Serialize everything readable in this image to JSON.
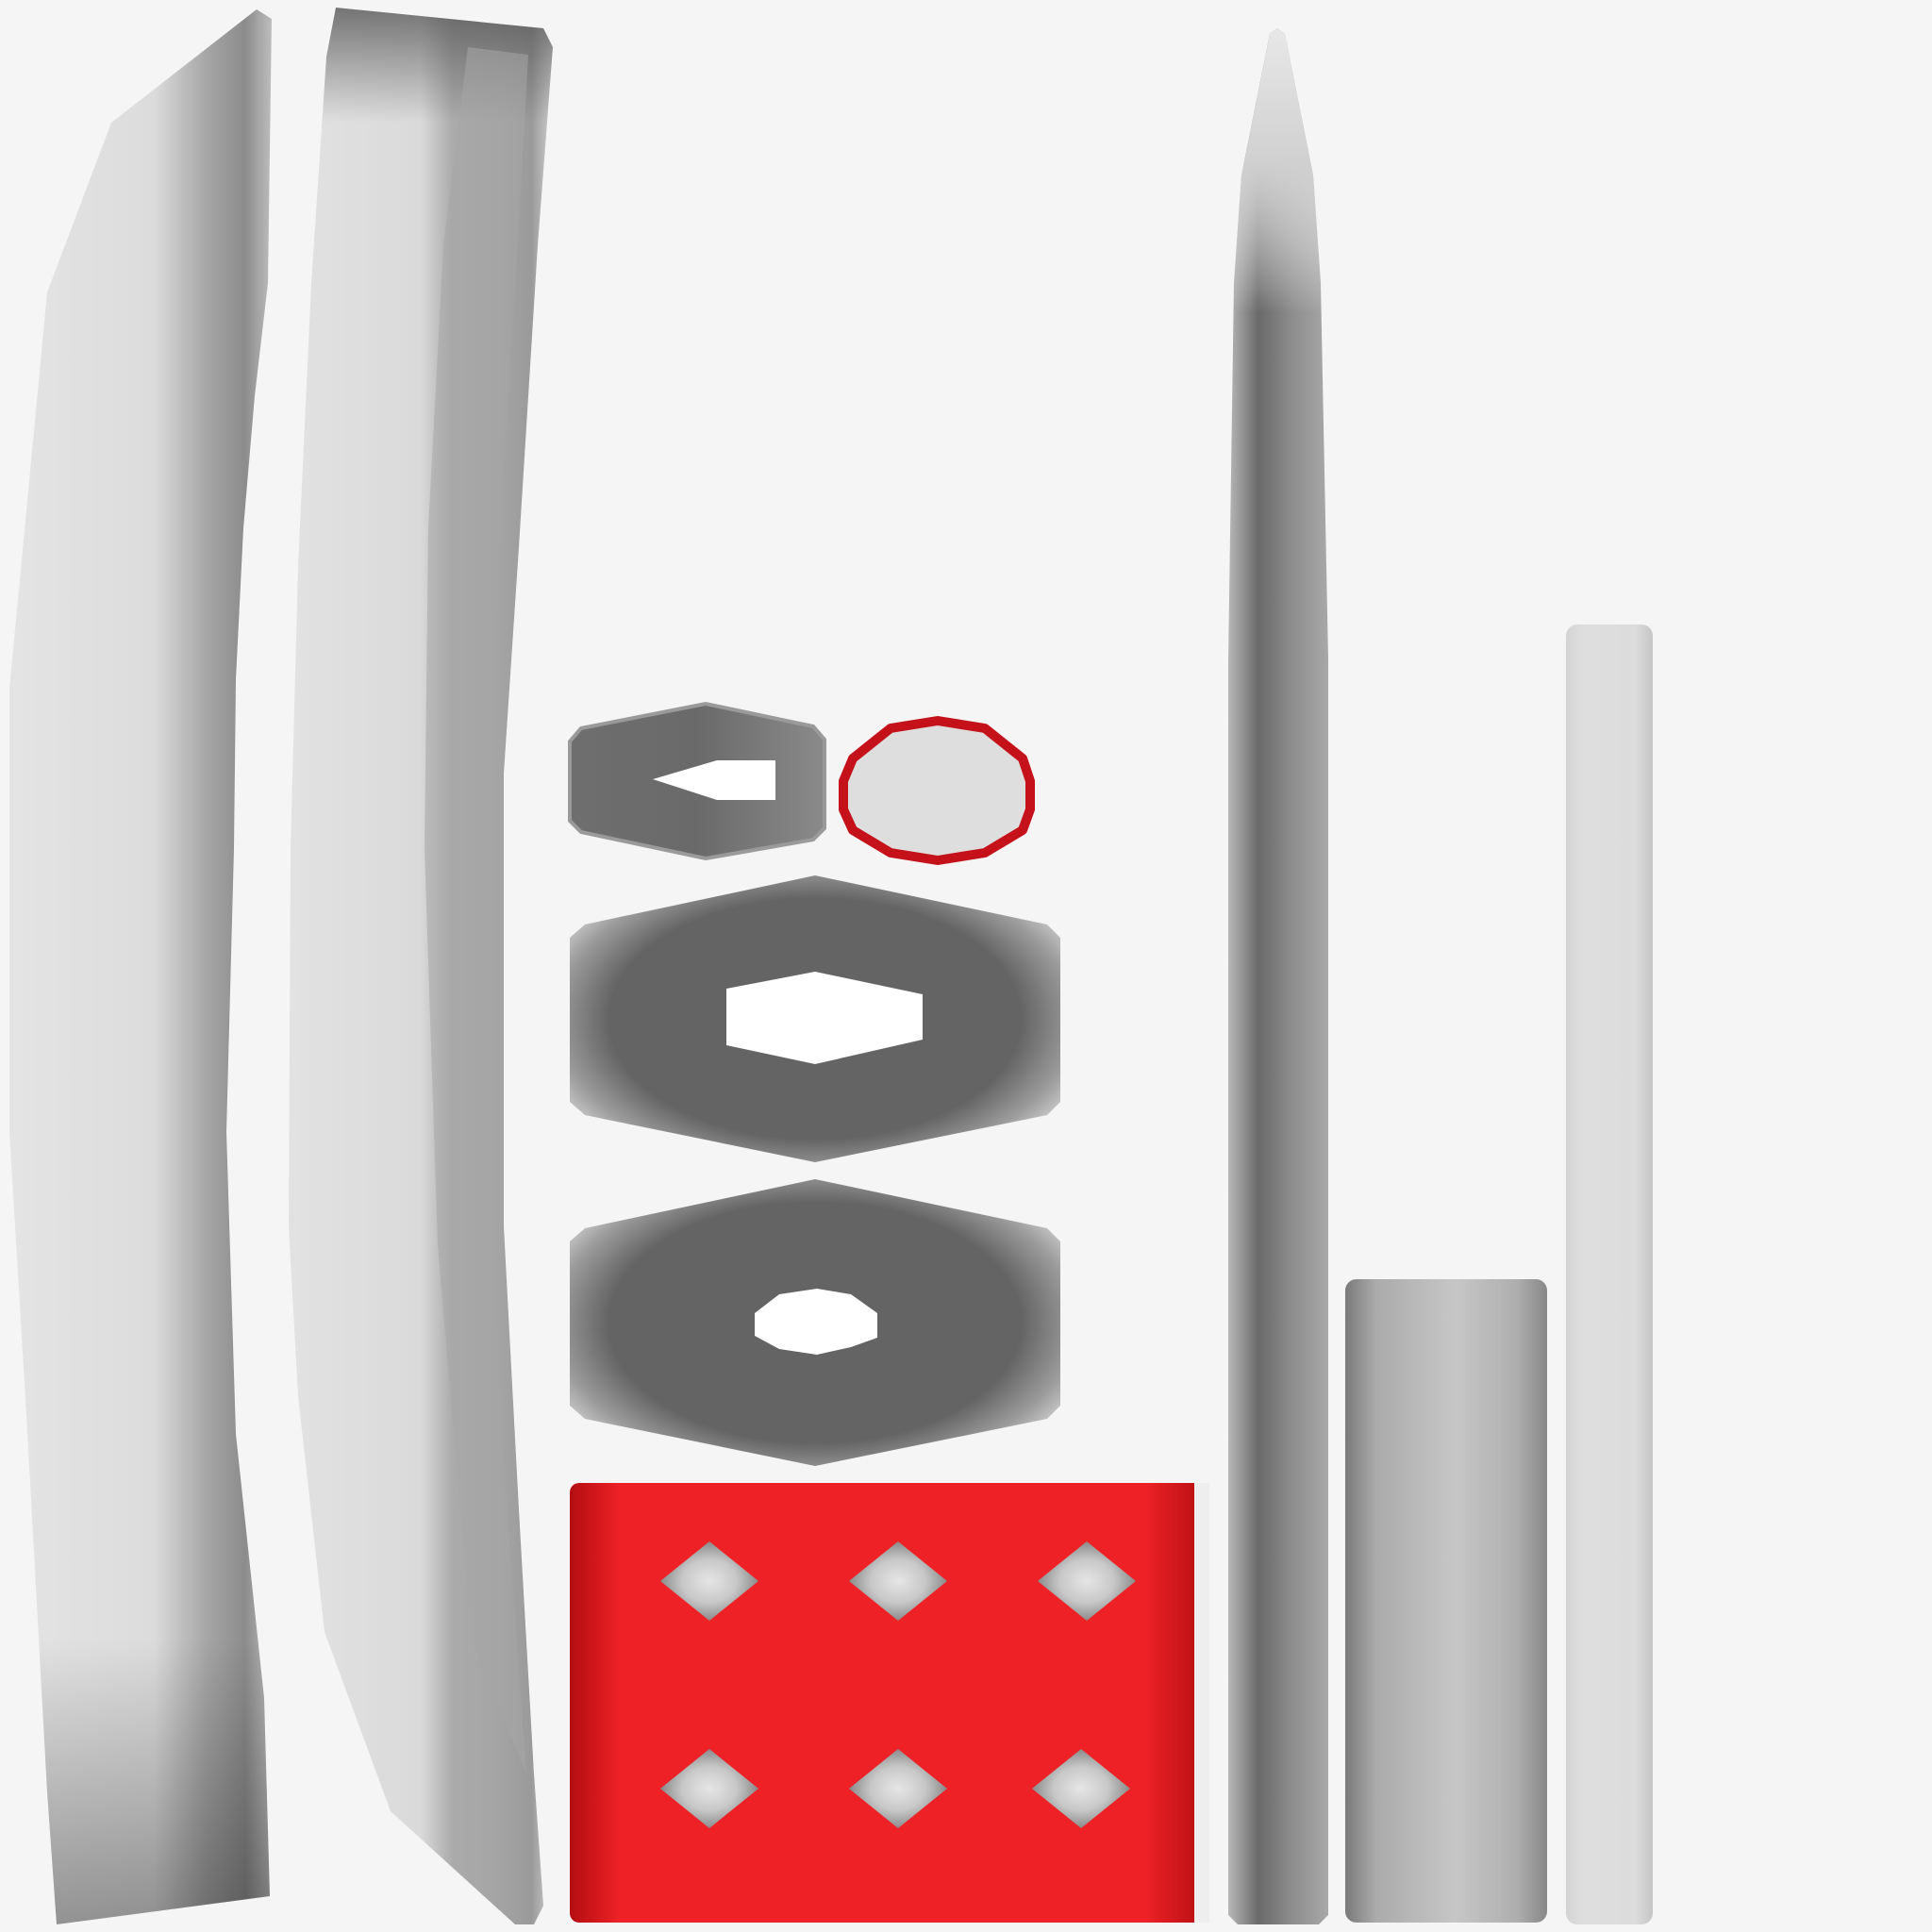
{
  "texture_sheet": {
    "background": "#f5f5f5",
    "palette": {
      "light_gray": "#dedede",
      "mid_gray": "#a4a4a4",
      "dark_gray": "#646464",
      "red": "#ee2226",
      "dark_red": "#b40d12",
      "hole": "#ffffff"
    },
    "pieces": [
      "left-curved-strip",
      "second-curved-strip",
      "small-hexagon-tile",
      "red-rim-octagon",
      "large-hexagon-hex-hole",
      "large-hexagon-octagon-hole",
      "red-panel-with-diamond-cutouts",
      "tall-spike-blade",
      "gray-rectangle-block",
      "thin-light-rod"
    ]
  }
}
